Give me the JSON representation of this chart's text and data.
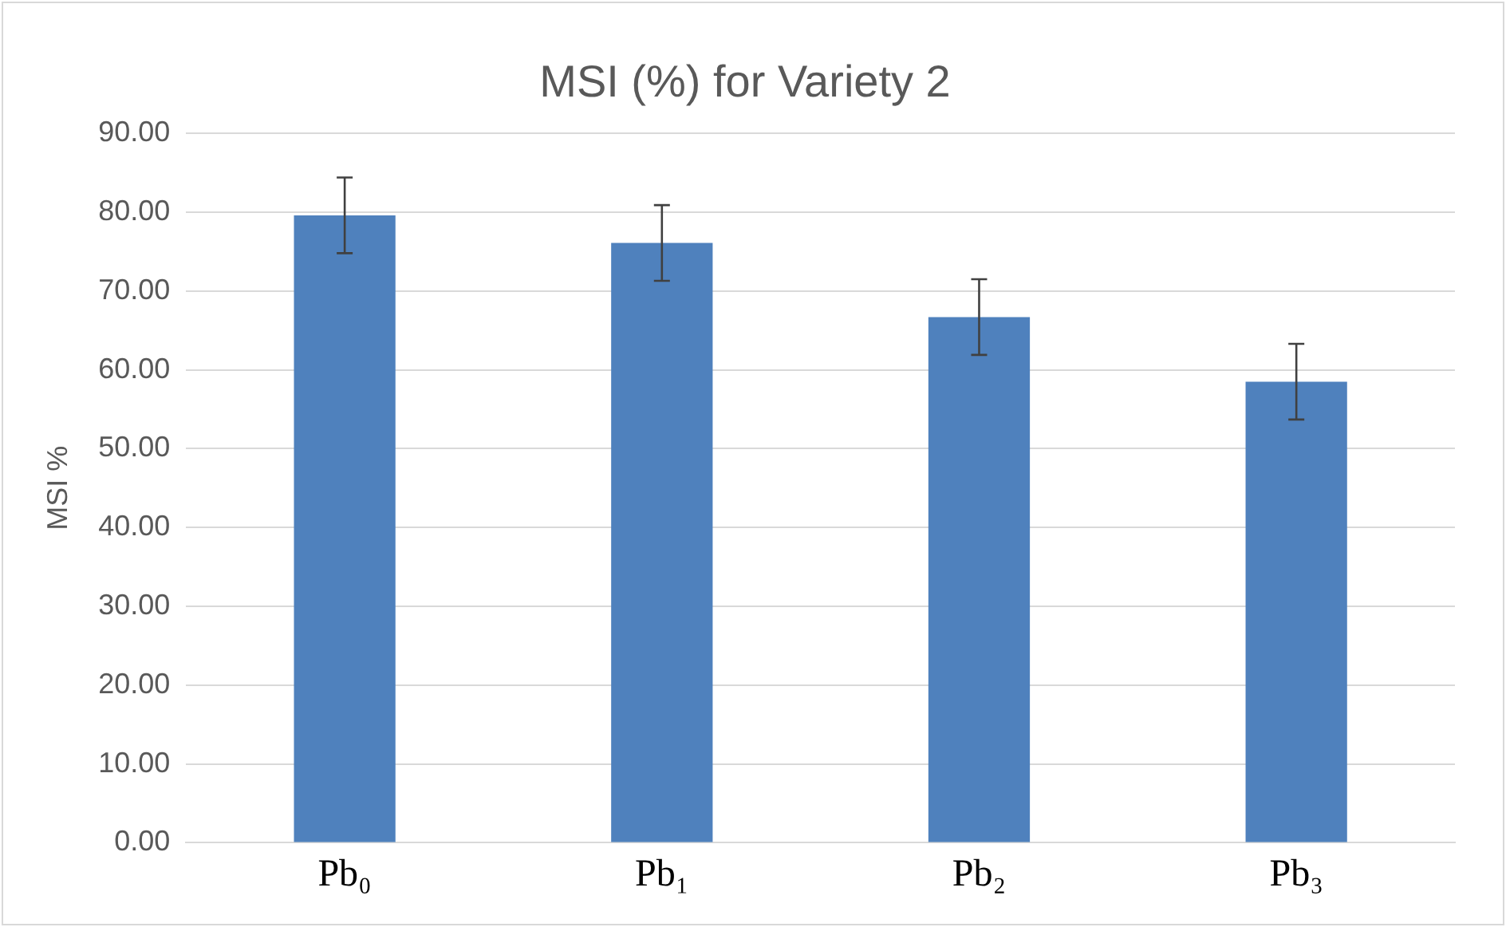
{
  "chart_data": {
    "type": "bar",
    "title": "MSI (%) for Variety 2",
    "ylabel": "MSI %",
    "categories": [
      "Pb₀",
      "Pb₁",
      "Pb₂",
      "Pb₃"
    ],
    "values": [
      79.6,
      76.1,
      66.7,
      58.5
    ],
    "errors": [
      4.8,
      4.8,
      4.8,
      4.8
    ],
    "color": "#4f81bd",
    "ylim": [
      0,
      90
    ],
    "yticks": [
      {
        "value": 0,
        "label": "0.00"
      },
      {
        "value": 10,
        "label": "10.00"
      },
      {
        "value": 20,
        "label": "20.00"
      },
      {
        "value": 30,
        "label": "30.00"
      },
      {
        "value": 40,
        "label": "40.00"
      },
      {
        "value": 50,
        "label": "50.00"
      },
      {
        "value": 60,
        "label": "60.00"
      },
      {
        "value": 70,
        "label": "70.00"
      },
      {
        "value": 80,
        "label": "80.00"
      },
      {
        "value": 90,
        "label": "90.00"
      }
    ],
    "grid": "y",
    "legend": false
  }
}
